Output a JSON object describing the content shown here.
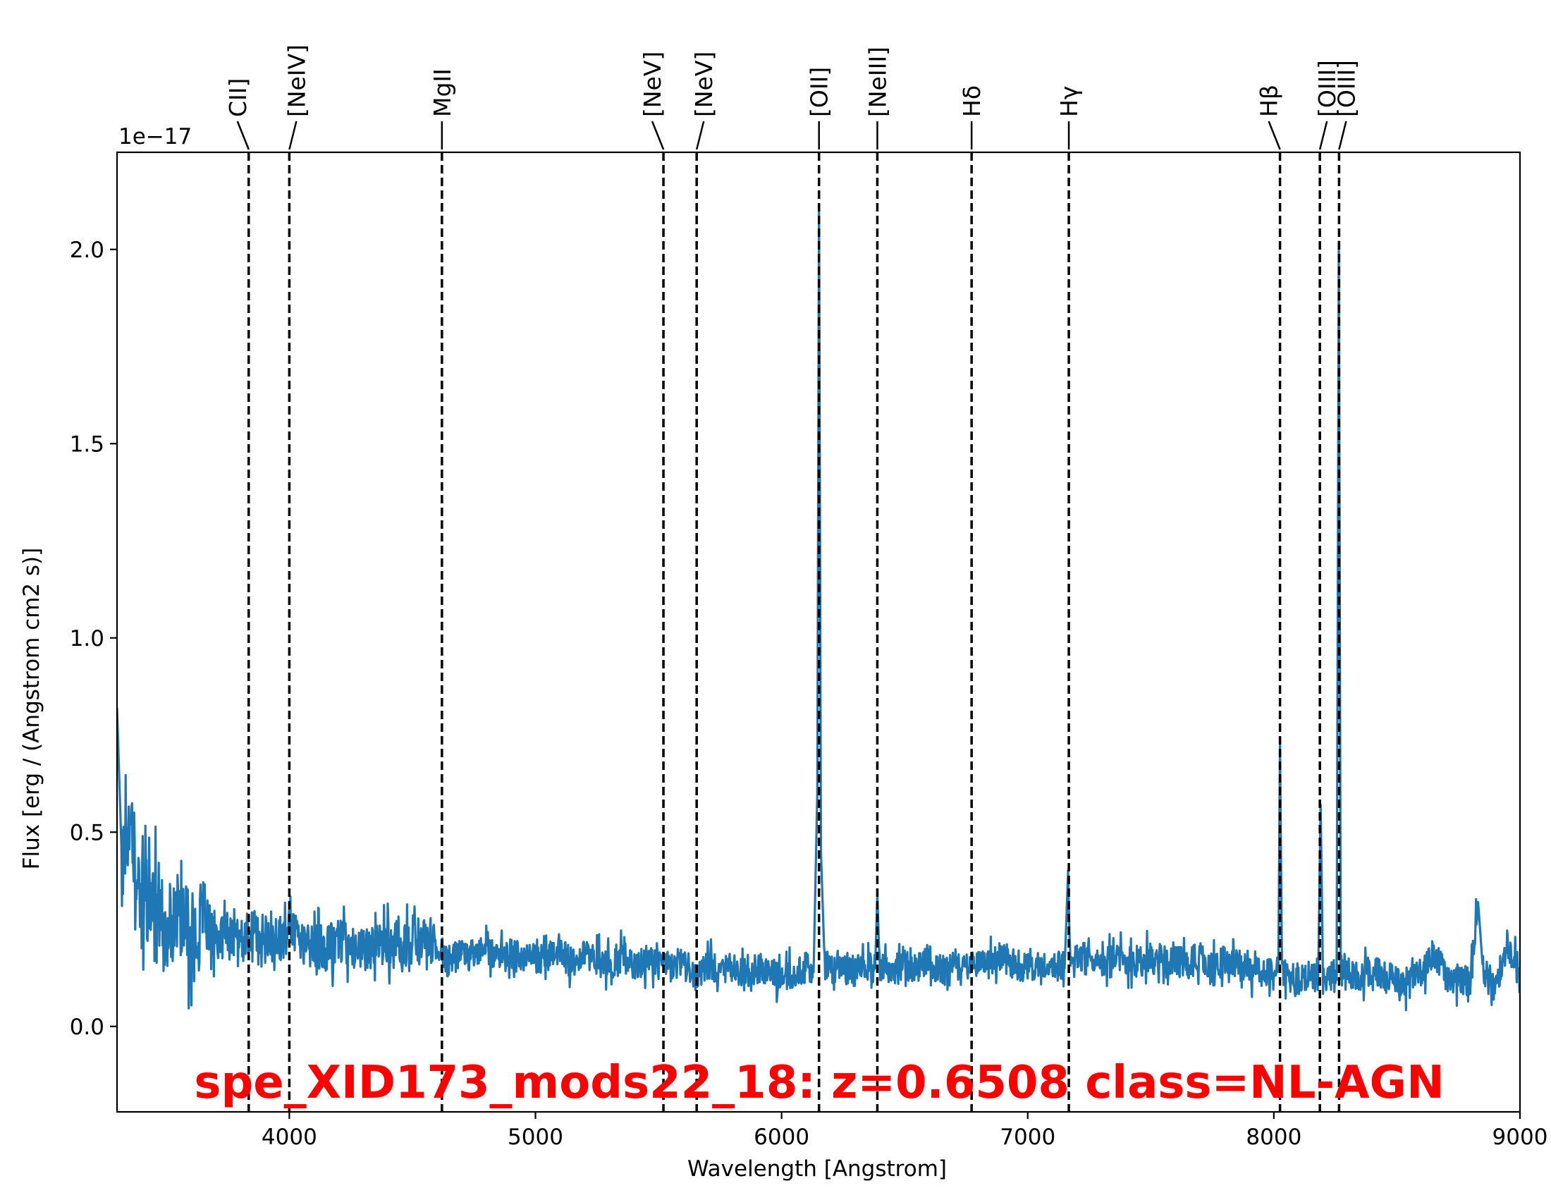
{
  "chart_data": {
    "type": "line",
    "title": "spe_XID173_mods22_18: z=0.6508 class=NL-AGN",
    "title_color": "#ff0000",
    "xlabel": "Wavelength [Angstrom]",
    "ylabel": "Flux [erg / (Angstrom cm2 s)]",
    "offset_label": "1e−17",
    "xlim": [
      3300,
      9000
    ],
    "ylim": [
      -0.22,
      2.25
    ],
    "xticks": [
      4000,
      5000,
      6000,
      7000,
      8000,
      9000
    ],
    "xtick_labels": [
      "4000",
      "5000",
      "6000",
      "7000",
      "8000",
      "9000"
    ],
    "yticks": [
      0.0,
      0.5,
      1.0,
      1.5,
      2.0
    ],
    "ytick_labels": [
      "0.0",
      "0.5",
      "1.0",
      "1.5",
      "2.0"
    ],
    "line_color": "#1f77b4",
    "grid": false,
    "series": [
      {
        "x": [
          3300,
          3320,
          3350,
          3400,
          3450,
          3500,
          3550,
          3600,
          3650,
          3700,
          3750,
          3800,
          3850,
          3900,
          3950,
          4000,
          4050,
          4100,
          4150,
          4200,
          4250,
          4300,
          4350,
          4400,
          4450,
          4500,
          4550,
          4600,
          4650,
          4700,
          4750,
          4800,
          4850,
          4900,
          4950,
          5000,
          5050,
          5100,
          5150,
          5200,
          5250,
          5300,
          5350,
          5400,
          5450,
          5500,
          5550,
          5600,
          5650,
          5700,
          5750,
          5800,
          5850,
          5900,
          5950,
          6000,
          6050,
          6100,
          6130,
          6145,
          6152,
          6160,
          6175,
          6200,
          6250,
          6300,
          6350,
          6380,
          6389,
          6398,
          6420,
          6450,
          6500,
          6550,
          6600,
          6650,
          6700,
          6750,
          6800,
          6850,
          6900,
          6950,
          7000,
          7050,
          7100,
          7150,
          7164,
          7172,
          7180,
          7200,
          7250,
          7300,
          7350,
          7400,
          7450,
          7500,
          7550,
          7600,
          7650,
          7700,
          7750,
          7800,
          7850,
          7900,
          7950,
          8000,
          8018,
          8025,
          8033,
          8050,
          8100,
          8150,
          8180,
          8190,
          8200,
          8230,
          8255,
          8264,
          8272,
          8285,
          8300,
          8350,
          8400,
          8450,
          8500,
          8550,
          8600,
          8650,
          8700,
          8750,
          8800,
          8830,
          8850,
          8900,
          8950,
          9000
        ],
        "y": [
          0.82,
          0.42,
          0.55,
          0.31,
          0.35,
          0.26,
          0.29,
          0.23,
          0.27,
          0.22,
          0.24,
          0.21,
          0.25,
          0.23,
          0.22,
          0.24,
          0.22,
          0.21,
          0.2,
          0.22,
          0.21,
          0.19,
          0.21,
          0.22,
          0.2,
          0.23,
          0.21,
          0.2,
          0.17,
          0.19,
          0.18,
          0.2,
          0.17,
          0.19,
          0.18,
          0.17,
          0.18,
          0.19,
          0.16,
          0.18,
          0.17,
          0.16,
          0.18,
          0.15,
          0.17,
          0.16,
          0.15,
          0.17,
          0.13,
          0.16,
          0.14,
          0.15,
          0.13,
          0.15,
          0.14,
          0.13,
          0.14,
          0.15,
          0.14,
          0.6,
          2.1,
          0.45,
          0.16,
          0.15,
          0.16,
          0.14,
          0.16,
          0.15,
          0.34,
          0.16,
          0.15,
          0.14,
          0.16,
          0.15,
          0.17,
          0.14,
          0.16,
          0.15,
          0.17,
          0.16,
          0.18,
          0.16,
          0.15,
          0.17,
          0.16,
          0.15,
          0.4,
          0.17,
          0.15,
          0.18,
          0.17,
          0.16,
          0.19,
          0.17,
          0.16,
          0.18,
          0.15,
          0.17,
          0.16,
          0.18,
          0.15,
          0.17,
          0.16,
          0.15,
          0.14,
          0.13,
          0.14,
          0.73,
          0.14,
          0.13,
          0.12,
          0.13,
          0.12,
          0.57,
          0.12,
          0.13,
          0.12,
          2.02,
          0.15,
          0.13,
          0.14,
          0.12,
          0.15,
          0.13,
          0.12,
          0.11,
          0.14,
          0.19,
          0.13,
          0.12,
          0.11,
          0.32,
          0.14,
          0.1,
          0.22,
          0.12
        ]
      }
    ],
    "annotations": [
      {
        "label": "CII]",
        "x": 3835
      },
      {
        "label": "[NeIV]",
        "x": 4000
      },
      {
        "label": "MgII",
        "x": 4620
      },
      {
        "label": "[NeV]",
        "x": 5520
      },
      {
        "label": "[NeV]",
        "x": 5655
      },
      {
        "label": "[OII]",
        "x": 6152
      },
      {
        "label": "[NeIII]",
        "x": 6389
      },
      {
        "label": "Hδ",
        "x": 6772
      },
      {
        "label": "Hγ",
        "x": 7167
      },
      {
        "label": "Hβ",
        "x": 8025
      },
      {
        "label": "[OIII]",
        "x": 8187
      },
      {
        "label": "[OIII]",
        "x": 8265
      }
    ]
  }
}
